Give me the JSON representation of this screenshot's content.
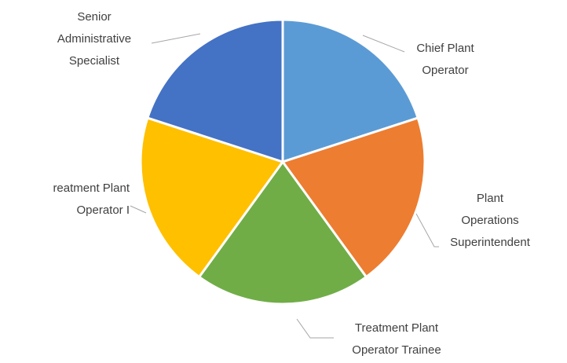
{
  "chart_data": {
    "type": "pie",
    "categories": [
      "Chief Plant Operator",
      "Plant Operations Superintendent",
      "Treatment Plant Operator Trainee",
      "reatment Plant Operator I",
      "Senior Administrative Specialist"
    ],
    "values": [
      20,
      20,
      20,
      20,
      20
    ],
    "colors": [
      "#5b9bd5",
      "#ed7d31",
      "#70ad47",
      "#ffc000",
      "#4472c4"
    ]
  }
}
